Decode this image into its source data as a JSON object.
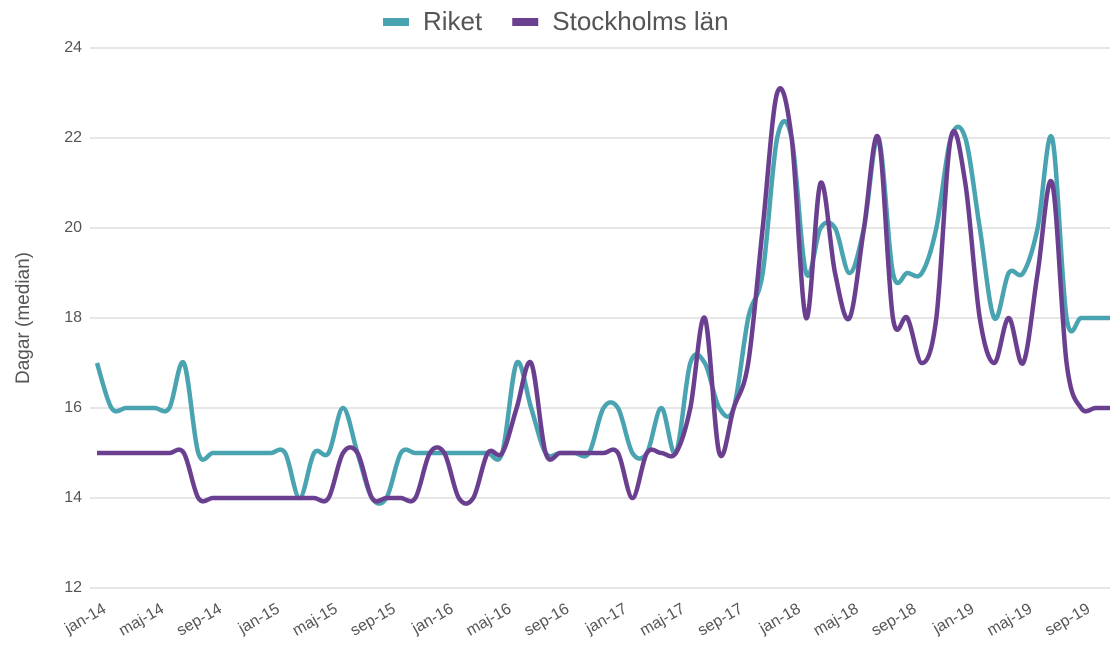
{
  "chart_data": {
    "type": "line",
    "y_label": "Dagar (median)",
    "categories": [
      "jan-14",
      null,
      null,
      null,
      "maj-14",
      null,
      null,
      null,
      "sep-14",
      null,
      null,
      null,
      "jan-15",
      null,
      null,
      null,
      "maj-15",
      null,
      null,
      null,
      "sep-15",
      null,
      null,
      null,
      "jan-16",
      null,
      null,
      null,
      "maj-16",
      null,
      null,
      null,
      "sep-16",
      null,
      null,
      null,
      "jan-17",
      null,
      null,
      null,
      "maj-17",
      null,
      null,
      null,
      "sep-17",
      null,
      null,
      null,
      "jan-18",
      null,
      null,
      null,
      "maj-18",
      null,
      null,
      null,
      "sep-18",
      null,
      null,
      null,
      "jan-19",
      null,
      null,
      null,
      "maj-19",
      null,
      null,
      null,
      "sep-19",
      null,
      null
    ],
    "series": [
      {
        "name": "Riket",
        "color": "#4aa3b0",
        "values": [
          17,
          16,
          16,
          16,
          16,
          16,
          17,
          15,
          15,
          15,
          15,
          15,
          15,
          15,
          14,
          15,
          15,
          16,
          15,
          14,
          14,
          15,
          15,
          15,
          15,
          15,
          15,
          15,
          15,
          17,
          16,
          15,
          15,
          15,
          15,
          16,
          16,
          15,
          15,
          16,
          15,
          17,
          17,
          16,
          16,
          18,
          19,
          22,
          22,
          19,
          20,
          20,
          19,
          20,
          22,
          19,
          19,
          19,
          20,
          22,
          22,
          20,
          18,
          19,
          19,
          20,
          22,
          18,
          18,
          18,
          18
        ]
      },
      {
        "name": "Stockholms län",
        "color": "#6b3f8f",
        "values": [
          15,
          15,
          15,
          15,
          15,
          15,
          15,
          14,
          14,
          14,
          14,
          14,
          14,
          14,
          14,
          14,
          14,
          15,
          15,
          14,
          14,
          14,
          14,
          15,
          15,
          14,
          14,
          15,
          15,
          16,
          17,
          15,
          15,
          15,
          15,
          15,
          15,
          14,
          15,
          15,
          15,
          16,
          18,
          15,
          16,
          17,
          20,
          23,
          22,
          18,
          21,
          19,
          18,
          20,
          22,
          18,
          18,
          17,
          18,
          22,
          21,
          18,
          17,
          18,
          17,
          19,
          21,
          17,
          16,
          16,
          16
        ]
      }
    ],
    "ylim": [
      12,
      24
    ],
    "yticks": [
      12,
      14,
      16,
      18,
      20,
      22,
      24
    ],
    "grid": true,
    "legend": "top"
  }
}
